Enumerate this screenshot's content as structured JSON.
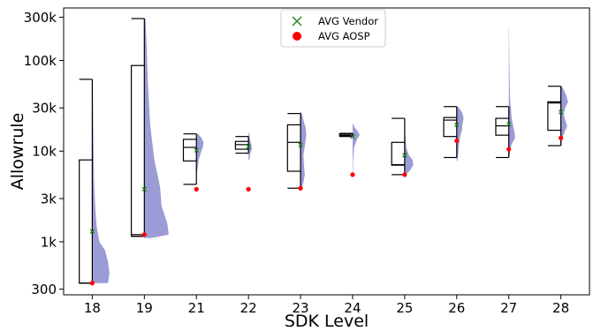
{
  "chart_data": {
    "type": "box-violin",
    "title": "",
    "xlabel": "SDK Level",
    "ylabel": "Allowrule",
    "yscale": "log",
    "ylim": [
      260,
      380000
    ],
    "yticks": [
      300,
      1000,
      3000,
      10000,
      30000,
      100000,
      300000
    ],
    "ytick_labels": [
      "300",
      "1k",
      "3k",
      "10k",
      "30k",
      "100k",
      "300k"
    ],
    "categories": [
      "18",
      "19",
      "21",
      "22",
      "23",
      "24",
      "25",
      "26",
      "27",
      "28"
    ],
    "legend": {
      "position": "top-center",
      "entries": [
        {
          "label": "AVG Vendor",
          "marker": "x",
          "color": "#1a7f1a"
        },
        {
          "label": "AVG AOSP",
          "marker": "circle",
          "color": "#ff0000"
        }
      ]
    },
    "colors": {
      "violin": "#9b9bd6",
      "box": "#000000"
    },
    "boxes": [
      {
        "sdk": "18",
        "min": 350,
        "q1": 350,
        "median": 350,
        "q3": 8000,
        "max": 62000
      },
      {
        "sdk": "19",
        "min": 1150,
        "q1": 1150,
        "median": 1200,
        "q3": 88000,
        "max": 290000
      },
      {
        "sdk": "21",
        "min": 4300,
        "q1": 7800,
        "median": 11000,
        "q3": 13500,
        "max": 15500
      },
      {
        "sdk": "22",
        "min": 9500,
        "q1": 10500,
        "median": 11800,
        "q3": 12800,
        "max": 14500
      },
      {
        "sdk": "23",
        "min": 3900,
        "q1": 6000,
        "median": 12500,
        "q3": 19500,
        "max": 26000
      },
      {
        "sdk": "24",
        "min": 14500,
        "q1": 14700,
        "median": 15000,
        "q3": 15500,
        "max": 15700
      },
      {
        "sdk": "25",
        "min": 5500,
        "q1": 7000,
        "median": 7100,
        "q3": 12500,
        "max": 23000
      },
      {
        "sdk": "26",
        "min": 8500,
        "q1": 14500,
        "median": 22000,
        "q3": 23500,
        "max": 31000
      },
      {
        "sdk": "27",
        "min": 8500,
        "q1": 15000,
        "median": 19000,
        "q3": 23000,
        "max": 31000
      },
      {
        "sdk": "28",
        "min": 11500,
        "q1": 17000,
        "median": 34000,
        "q3": 35000,
        "max": 52000
      }
    ],
    "violins": [
      {
        "sdk": "18",
        "points": [
          [
            350,
            0.55
          ],
          [
            450,
            0.6
          ],
          [
            600,
            0.55
          ],
          [
            800,
            0.45
          ],
          [
            1000,
            0.25
          ],
          [
            1500,
            0.15
          ],
          [
            2500,
            0.1
          ],
          [
            5000,
            0.06
          ],
          [
            15000,
            0.04
          ],
          [
            62000,
            0.02
          ]
        ]
      },
      {
        "sdk": "19",
        "points": [
          [
            1100,
            0.25
          ],
          [
            1200,
            0.85
          ],
          [
            1600,
            0.8
          ],
          [
            2500,
            0.6
          ],
          [
            4000,
            0.55
          ],
          [
            8000,
            0.35
          ],
          [
            20000,
            0.2
          ],
          [
            60000,
            0.12
          ],
          [
            150000,
            0.08
          ],
          [
            290000,
            0.04
          ]
        ]
      },
      {
        "sdk": "21",
        "points": [
          [
            6000,
            0.03
          ],
          [
            8000,
            0.08
          ],
          [
            9500,
            0.15
          ],
          [
            11000,
            0.22
          ],
          [
            12500,
            0.25
          ],
          [
            14000,
            0.18
          ],
          [
            15500,
            0.05
          ]
        ]
      },
      {
        "sdk": "22",
        "points": [
          [
            8000,
            0.03
          ],
          [
            9500,
            0.07
          ],
          [
            10500,
            0.12
          ],
          [
            12000,
            0.1
          ],
          [
            13000,
            0.06
          ],
          [
            14500,
            0.04
          ],
          [
            16000,
            0.02
          ]
        ]
      },
      {
        "sdk": "23",
        "points": [
          [
            3800,
            0.04
          ],
          [
            4500,
            0.1
          ],
          [
            5500,
            0.15
          ],
          [
            7000,
            0.12
          ],
          [
            9000,
            0.1
          ],
          [
            12000,
            0.16
          ],
          [
            15000,
            0.2
          ],
          [
            18000,
            0.18
          ],
          [
            22000,
            0.1
          ],
          [
            27000,
            0.03
          ]
        ]
      },
      {
        "sdk": "24",
        "points": [
          [
            5500,
            0.01
          ],
          [
            8000,
            0.02
          ],
          [
            11000,
            0.05
          ],
          [
            13500,
            0.15
          ],
          [
            15000,
            0.25
          ],
          [
            16500,
            0.18
          ],
          [
            18000,
            0.08
          ],
          [
            20000,
            0.02
          ]
        ]
      },
      {
        "sdk": "25",
        "points": [
          [
            5500,
            0.05
          ],
          [
            6200,
            0.2
          ],
          [
            7000,
            0.3
          ],
          [
            8000,
            0.28
          ],
          [
            9000,
            0.15
          ],
          [
            11000,
            0.05
          ],
          [
            16000,
            0.02
          ],
          [
            23000,
            0.01
          ]
        ]
      },
      {
        "sdk": "26",
        "points": [
          [
            7800,
            0.03
          ],
          [
            10000,
            0.06
          ],
          [
            12000,
            0.08
          ],
          [
            14500,
            0.12
          ],
          [
            17000,
            0.18
          ],
          [
            20000,
            0.2
          ],
          [
            23000,
            0.24
          ],
          [
            26000,
            0.2
          ],
          [
            29000,
            0.12
          ],
          [
            31000,
            0.04
          ]
        ]
      },
      {
        "sdk": "27",
        "points": [
          [
            8500,
            0.02
          ],
          [
            10000,
            0.05
          ],
          [
            12000,
            0.1
          ],
          [
            14000,
            0.22
          ],
          [
            16000,
            0.2
          ],
          [
            19000,
            0.15
          ],
          [
            23000,
            0.1
          ],
          [
            40000,
            0.04
          ],
          [
            100000,
            0.02
          ],
          [
            240000,
            0.005
          ]
        ]
      },
      {
        "sdk": "28",
        "points": [
          [
            11500,
            0.02
          ],
          [
            14000,
            0.05
          ],
          [
            16500,
            0.14
          ],
          [
            19000,
            0.22
          ],
          [
            22000,
            0.15
          ],
          [
            26000,
            0.1
          ],
          [
            30000,
            0.15
          ],
          [
            35000,
            0.25
          ],
          [
            42000,
            0.18
          ],
          [
            52000,
            0.04
          ]
        ]
      }
    ],
    "avg_vendor": [
      1300,
      3800,
      10200,
      11200,
      11700,
      14500,
      9000,
      19500,
      19800,
      27000
    ],
    "avg_aosp": [
      350,
      1200,
      3800,
      3800,
      3900,
      5500,
      5500,
      13000,
      10500,
      14000
    ]
  }
}
